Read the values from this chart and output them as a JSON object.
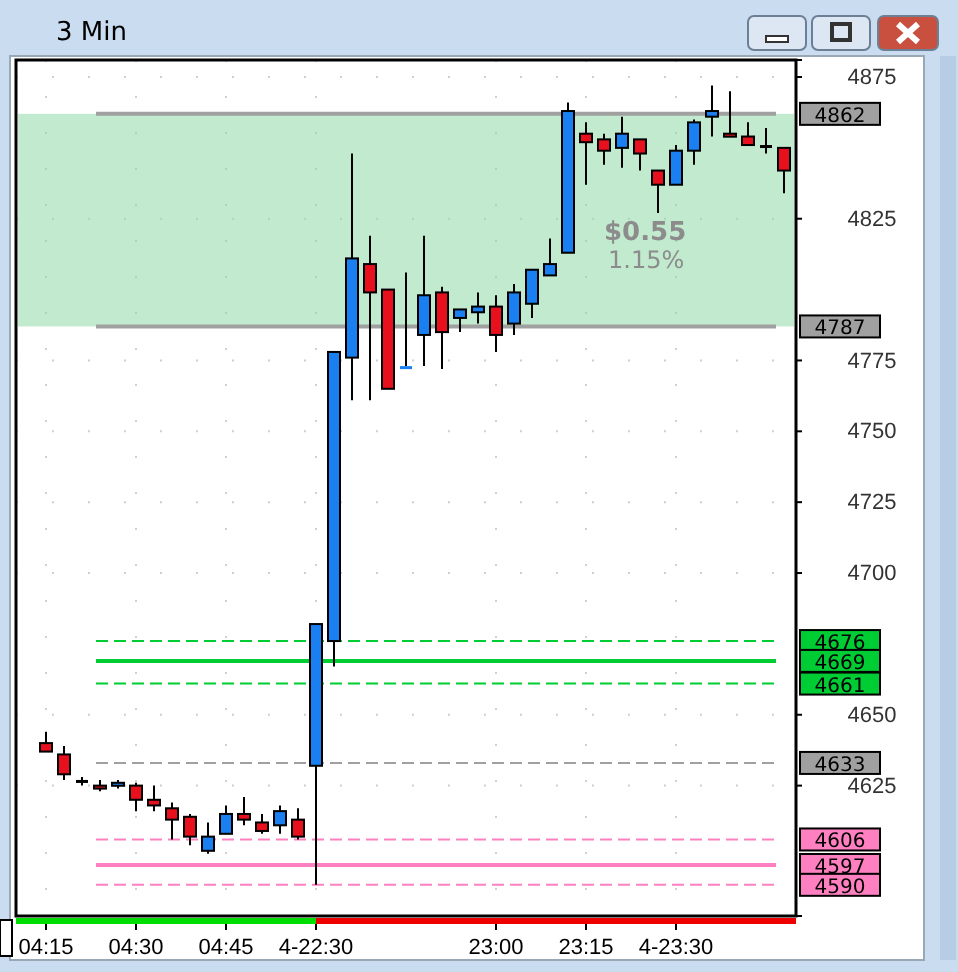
{
  "chart_data": {
    "type": "candlestick",
    "title": "3 Min",
    "categories": [
      "04:15",
      null,
      null,
      null,
      null,
      "04:30",
      null,
      null,
      null,
      null,
      "04:45",
      null,
      null,
      null,
      null,
      "4-22:30",
      null,
      null,
      null,
      null,
      null,
      null,
      null,
      null,
      null,
      "23:00",
      null,
      null,
      null,
      null,
      "23:15",
      null,
      null,
      null,
      null,
      "4-23:30",
      null,
      null,
      null,
      null,
      null,
      null
    ],
    "ohlc": [
      [
        4640,
        4644,
        4637,
        4637
      ],
      [
        4636,
        4639,
        4627,
        4629
      ],
      [
        4627,
        4628,
        4625,
        4627
      ],
      [
        4625,
        4627,
        4623,
        4624
      ],
      [
        4625,
        4627,
        4624,
        4626
      ],
      [
        4625,
        4626,
        4616,
        4620
      ],
      [
        4620,
        4625,
        4616,
        4618
      ],
      [
        4617,
        4619,
        4606,
        4613
      ],
      [
        4614,
        4615,
        4604,
        4607
      ],
      [
        4602,
        4612,
        4601,
        4607
      ],
      [
        4608,
        4618,
        4608,
        4615
      ],
      [
        4615,
        4621,
        4611,
        4613
      ],
      [
        4612,
        4615,
        4608,
        4609
      ],
      [
        4611,
        4618,
        4608,
        4616
      ],
      [
        4613,
        4617,
        4606,
        4607
      ],
      [
        4632,
        4682,
        4590,
        4682
      ],
      [
        4676,
        4778,
        4667,
        4778
      ],
      [
        4776,
        4848,
        4761,
        4811
      ],
      [
        4809,
        4819,
        4761,
        4799
      ],
      [
        4800,
        4800,
        4765,
        4765
      ],
      [
        4773,
        4806,
        4773,
        4773
      ],
      [
        4784,
        4819,
        4773,
        4798
      ],
      [
        4799,
        4801,
        4772,
        4785
      ],
      [
        4790,
        4793,
        4785,
        4793
      ],
      [
        4792,
        4799,
        4788,
        4794
      ],
      [
        4794,
        4798,
        4778,
        4784
      ],
      [
        4788,
        4802,
        4784,
        4799
      ],
      [
        4795,
        4807,
        4790,
        4807
      ],
      [
        4805,
        4818,
        4805,
        4809
      ],
      [
        4813,
        4866,
        4813,
        4863
      ],
      [
        4855,
        4859,
        4837,
        4852
      ],
      [
        4853,
        4855,
        4844,
        4849
      ],
      [
        4850,
        4861,
        4843,
        4855
      ],
      [
        4853,
        4853,
        4842,
        4848
      ],
      [
        4842,
        4842,
        4827,
        4837
      ],
      [
        4837,
        4851,
        4837,
        4849
      ],
      [
        4849,
        4860,
        4844,
        4859
      ],
      [
        4861,
        4872,
        4854,
        4863
      ],
      [
        4855,
        4870,
        4854,
        4854
      ],
      [
        4854,
        4859,
        4851,
        4851
      ],
      [
        4851,
        4857,
        4848,
        4851
      ],
      [
        4850,
        4850,
        4834,
        4842
      ]
    ],
    "colors": [
      "#e8101c",
      "#e8101c",
      "#000000",
      "#e8101c",
      "#1a7ff0",
      "#e8101c",
      "#e8101c",
      "#e8101c",
      "#e8101c",
      "#1a7ff0",
      "#1a7ff0",
      "#e8101c",
      "#e8101c",
      "#1a7ff0",
      "#e8101c",
      "#1a7ff0",
      "#1a7ff0",
      "#1a7ff0",
      "#e8101c",
      "#e8101c",
      "#1a7ff0",
      "#1a7ff0",
      "#e8101c",
      "#1a7ff0",
      "#1a7ff0",
      "#e8101c",
      "#1a7ff0",
      "#1a7ff0",
      "#1a7ff0",
      "#1a7ff0",
      "#e8101c",
      "#e8101c",
      "#1a7ff0",
      "#e8101c",
      "#e8101c",
      "#1a7ff0",
      "#1a7ff0",
      "#1a7ff0",
      "#e8101c",
      "#e8101c",
      "#000000",
      "#e8101c"
    ],
    "ylim": [
      4579,
      4881
    ],
    "yticks": [
      4875,
      4825,
      4775,
      4750,
      4725,
      4700,
      4650,
      4625
    ],
    "grid": true,
    "ref_lines": [
      {
        "axis": "y",
        "value": 4862,
        "label": "4862",
        "color": "#a0a0a0",
        "line_style": "solid"
      },
      {
        "axis": "y",
        "value": 4787,
        "label": "4787",
        "color": "#a0a0a0",
        "line_style": "solid"
      },
      {
        "axis": "y",
        "value": 4676,
        "label": "4676",
        "color": "#00cc33",
        "line_style": "dashed"
      },
      {
        "axis": "y",
        "value": 4669,
        "label": "4669",
        "color": "#00cc33",
        "line_style": "solid"
      },
      {
        "axis": "y",
        "value": 4661,
        "label": "4661",
        "color": "#00cc33",
        "line_style": "dashed"
      },
      {
        "axis": "y",
        "value": 4633,
        "label": "4633",
        "color": "#a0a0a0",
        "line_style": "dashed"
      },
      {
        "axis": "y",
        "value": 4606,
        "label": "4606",
        "color": "#ff80c0",
        "line_style": "dashed"
      },
      {
        "axis": "y",
        "value": 4597,
        "label": "4597",
        "color": "#ff80c0",
        "line_style": "solid"
      },
      {
        "axis": "y",
        "value": 4590,
        "label": "4590",
        "color": "#ff80c0",
        "line_style": "dashed"
      }
    ],
    "bands": [
      {
        "axis": "y",
        "from": 4787,
        "to": 4862,
        "color": "#8fd9a8"
      }
    ],
    "annotations": [
      "$0.55",
      "1.15%"
    ]
  }
}
